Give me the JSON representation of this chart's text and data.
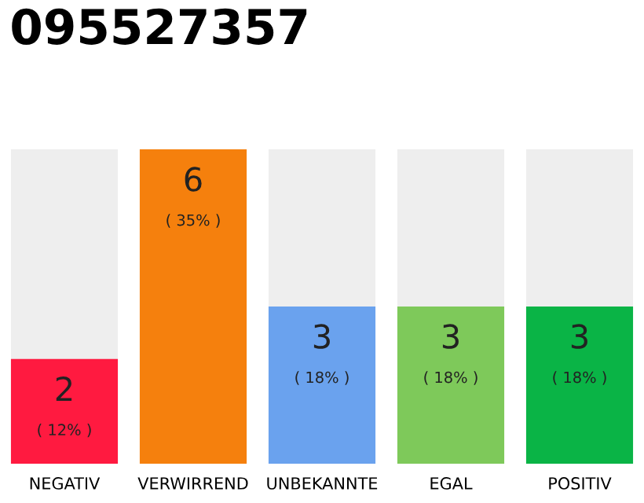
{
  "chart_data": {
    "type": "bar",
    "title": "095527357",
    "relative": false,
    "categories": [
      "NEGATIV",
      "VERWIRREND",
      "UNBEKANNTE",
      "EGAL",
      "POSITIV"
    ],
    "values": [
      2,
      6,
      3,
      3,
      3
    ],
    "colors": [
      "#ff1a40",
      "#f5800d",
      "#6aa2ee",
      "#7ec95a",
      "#0ab446"
    ],
    "value_labels": [
      "2\n( 12% )",
      "6\n( 35% )",
      "3\n( 18% )",
      "3\n( 18% )",
      "3\n( 18% )"
    ],
    "grid": false,
    "legend": false
  }
}
